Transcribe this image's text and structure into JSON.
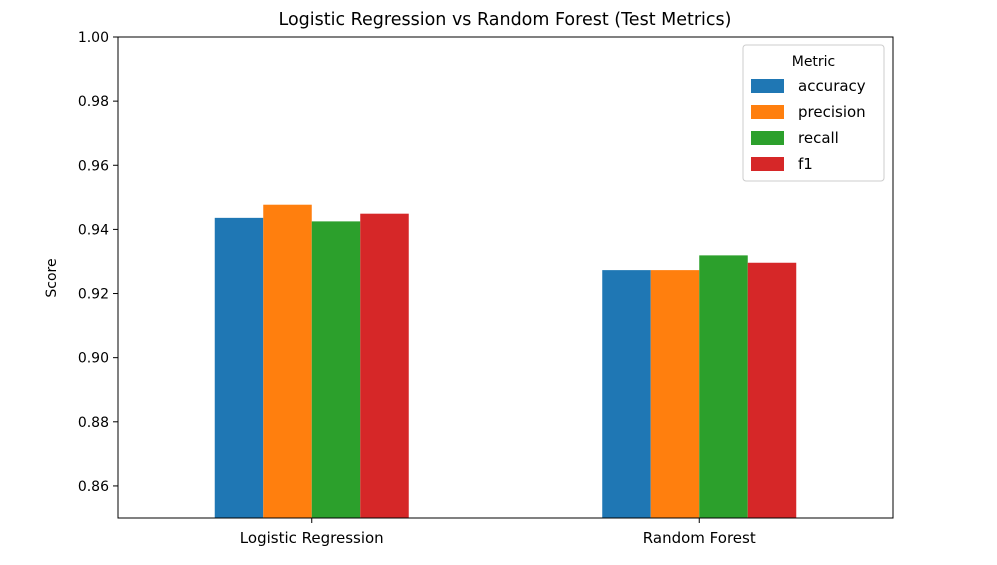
{
  "chart_data": {
    "type": "bar",
    "title": "Logistic Regression vs Random Forest (Test Metrics)",
    "xlabel": "",
    "ylabel": "Score",
    "categories": [
      "Logistic Regression",
      "Random Forest"
    ],
    "series": [
      {
        "name": "accuracy",
        "values": [
          0.9436,
          0.9273
        ],
        "color": "#1f77b4"
      },
      {
        "name": "precision",
        "values": [
          0.9477,
          0.9273
        ],
        "color": "#ff7f0e"
      },
      {
        "name": "recall",
        "values": [
          0.9425,
          0.9319
        ],
        "color": "#2ca02c"
      },
      {
        "name": "f1",
        "values": [
          0.9449,
          0.9296
        ],
        "color": "#d62728"
      }
    ],
    "ylim": [
      0.85,
      1.0
    ],
    "yticks": [
      "0.86",
      "0.88",
      "0.90",
      "0.92",
      "0.94",
      "0.96",
      "0.98",
      "1.00"
    ],
    "legend": {
      "title": "Metric",
      "placement": "top-right"
    },
    "grid": false
  }
}
